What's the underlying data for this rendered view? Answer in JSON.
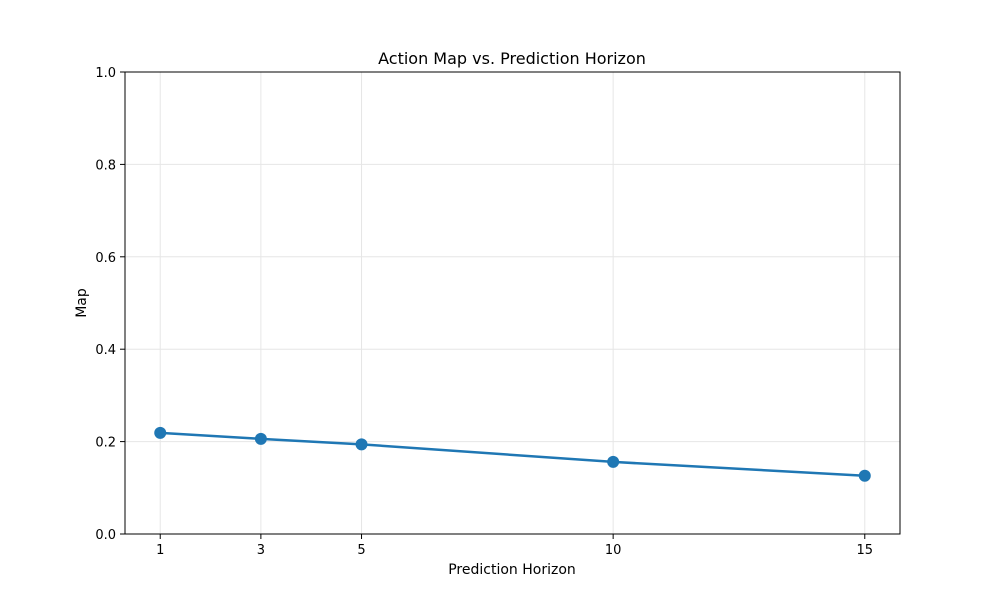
{
  "chart_data": {
    "type": "line",
    "title": "Action Map vs. Prediction Horizon",
    "xlabel": "Prediction Horizon",
    "ylabel": "Map",
    "x": [
      1,
      3,
      5,
      10,
      15
    ],
    "series": [
      {
        "values": [
          0.219,
          0.206,
          0.194,
          0.156,
          0.126
        ]
      }
    ],
    "xticks": [
      1,
      3,
      5,
      10,
      15
    ],
    "yticks": [
      "0.0",
      "0.2",
      "0.4",
      "0.6",
      "0.8",
      "1.0"
    ],
    "xlim": [
      0.3,
      15.7
    ],
    "ylim": [
      0,
      1
    ],
    "grid": true,
    "colors": {
      "line": "#1f77b4",
      "grid": "#e6e6e6",
      "axis": "#000000"
    }
  }
}
